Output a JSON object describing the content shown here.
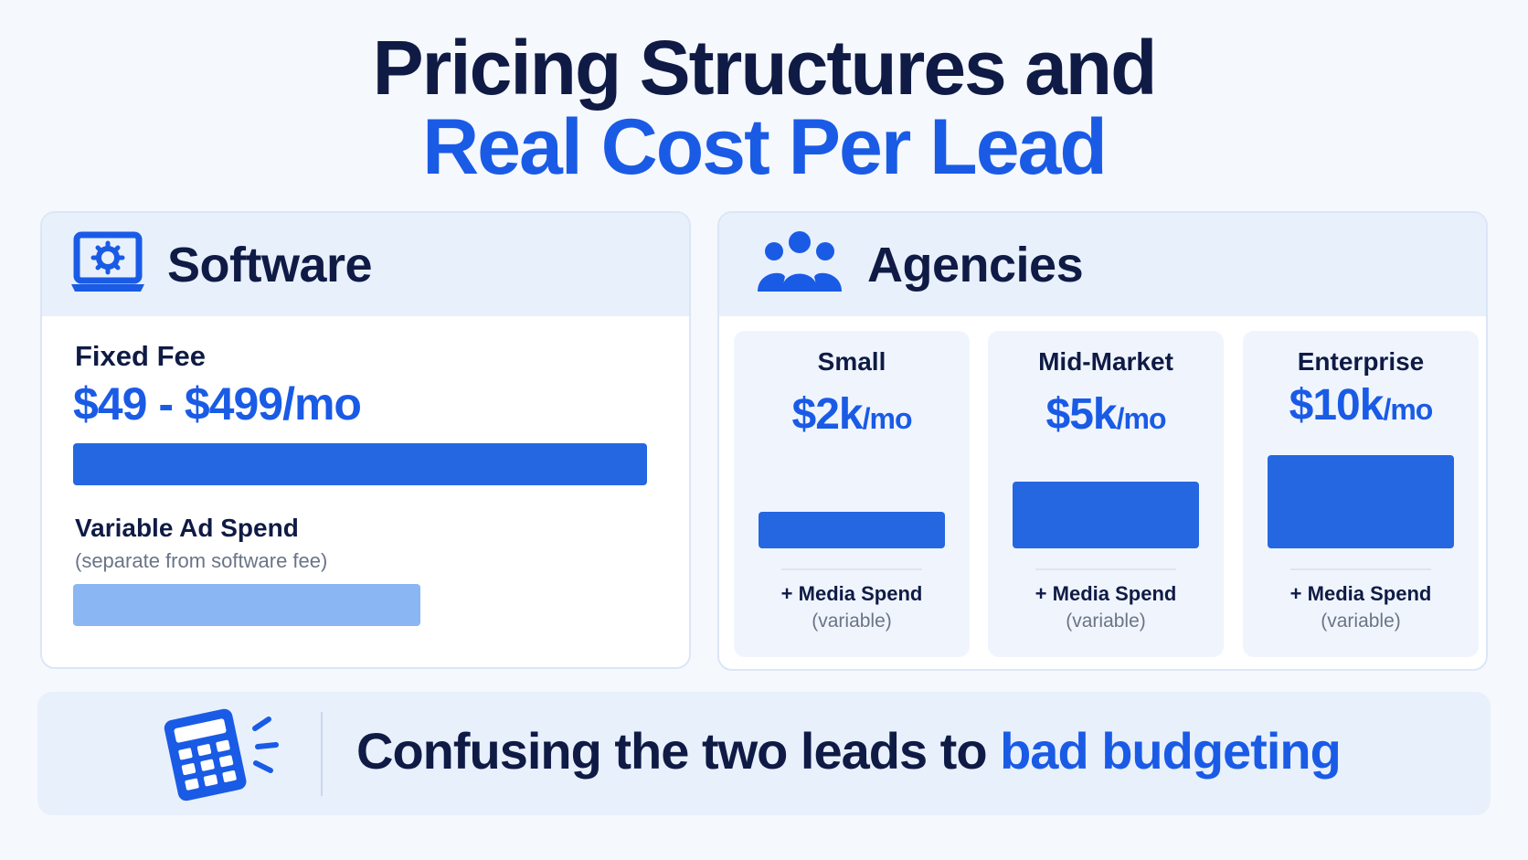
{
  "title": {
    "line1": "Pricing Structures and",
    "line2": "Real Cost Per Lead"
  },
  "software": {
    "heading": "Software",
    "icon": "laptop-gear-icon",
    "fixed_label": "Fixed Fee",
    "fixed_value": "$49 - $499/mo",
    "variable_label": "Variable Ad Spend",
    "variable_note": "(separate from software fee)"
  },
  "agencies": {
    "heading": "Agencies",
    "icon": "team-icon",
    "tiers": [
      {
        "name": "Small",
        "price": "$2k",
        "unit": "/mo",
        "media": "+ Media Spend",
        "note": "(variable)"
      },
      {
        "name": "Mid-Market",
        "price": "$5k",
        "unit": "/mo",
        "media": "+ Media Spend",
        "note": "(variable)"
      },
      {
        "name": "Enterprise",
        "price": "$10k",
        "unit": "/mo",
        "media": "+ Media Spend",
        "note": "(variable)"
      }
    ]
  },
  "banner": {
    "icon": "calculator-icon",
    "text_main": "Confusing the two leads to ",
    "text_highlight": "bad budgeting"
  },
  "colors": {
    "navy": "#0f1b45",
    "accent": "#1a5be6",
    "bar": "#2467e1",
    "bar_light": "#8ab6f3"
  }
}
